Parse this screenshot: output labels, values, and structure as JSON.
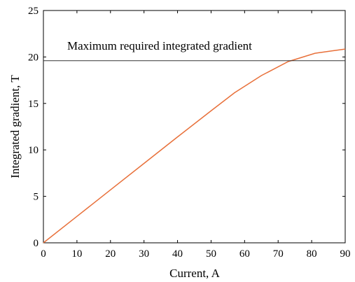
{
  "chart_data": {
    "type": "line",
    "xlabel": "Current, A",
    "ylabel": "Integrated gradient, T",
    "xlim": [
      0,
      90
    ],
    "ylim": [
      0,
      25
    ],
    "xticks": [
      0,
      10,
      20,
      30,
      40,
      50,
      60,
      70,
      80,
      90
    ],
    "yticks": [
      0,
      5,
      10,
      15,
      20,
      25
    ],
    "grid": false,
    "series": [
      {
        "color": "#e8703a",
        "x": [
          0,
          10,
          20,
          30,
          40,
          50,
          57,
          65,
          73,
          81,
          86,
          90
        ],
        "y": [
          0,
          2.85,
          5.7,
          8.55,
          11.4,
          14.2,
          16.15,
          18.0,
          19.5,
          20.4,
          20.65,
          20.85
        ]
      }
    ],
    "reference_line": {
      "y": 19.6,
      "color": "#333333",
      "label": "Maximum required integrated gradient"
    }
  }
}
